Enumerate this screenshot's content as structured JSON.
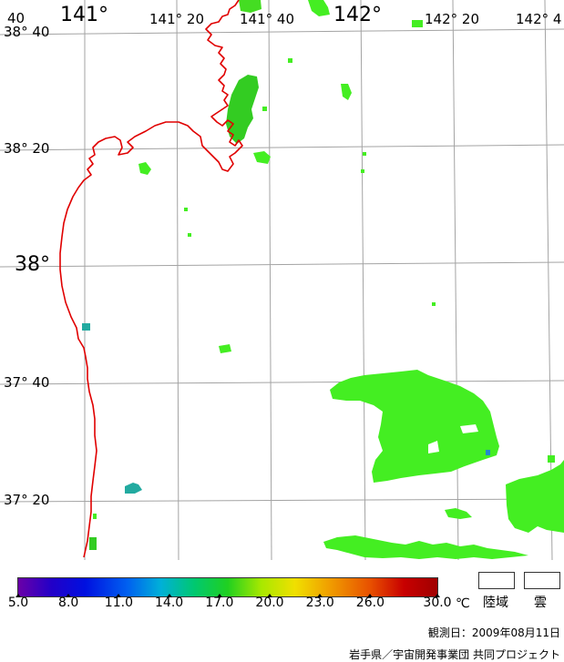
{
  "map": {
    "top_labels": [
      "141°",
      "141° 20",
      "141° 40",
      "142°",
      "142° 20",
      "142° 4"
    ],
    "left_labels": [
      "38° 40",
      "38° 20",
      "38°",
      "37° 40",
      "37° 20"
    ],
    "corner_label": "40",
    "colors": {
      "coastline": "#e00000",
      "grid": "#a0a0a0",
      "sst_bright": "#44ee22",
      "sst_mid": "#33cc22",
      "sst_teal": "#22aaa0"
    }
  },
  "colorbar": {
    "ticks": [
      "5.0",
      "8.0",
      "11.0",
      "14.0",
      "17.0",
      "20.0",
      "23.0",
      "26.0",
      "30.0"
    ],
    "unit": "℃",
    "min": 5.0,
    "max": 30.0
  },
  "legend": {
    "land": "陸域",
    "cloud": "雲"
  },
  "footer": {
    "observation_date": "観測日：2009年08月11日",
    "credit": "岩手県／宇宙開発事業団 共同プロジェクト"
  }
}
